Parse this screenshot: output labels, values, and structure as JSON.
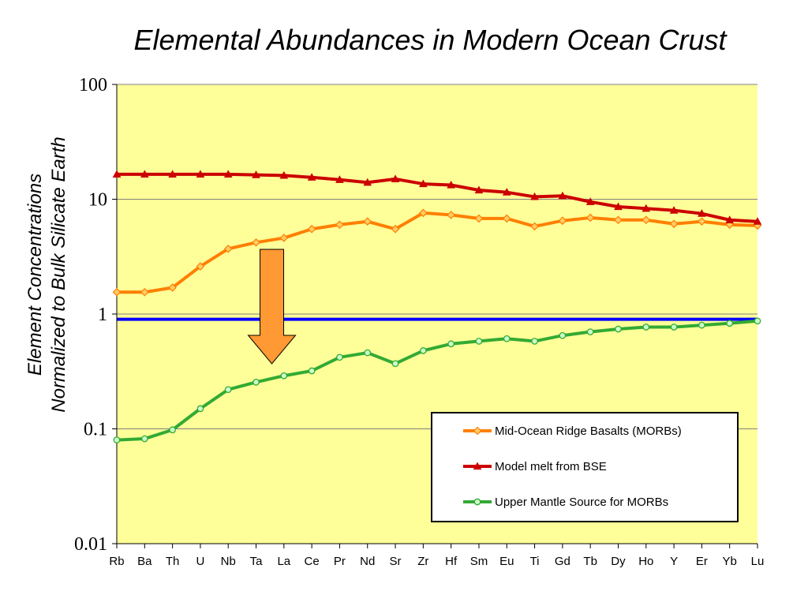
{
  "chart_data": {
    "type": "line",
    "title": "Elemental Abundances in Modern Ocean Crust",
    "ylabel": [
      "Element Concentrations",
      "Normalized to Bulk Silicate Earth"
    ],
    "yscale": "log",
    "ylim": [
      0.01,
      100
    ],
    "yticks": [
      "100",
      "10",
      "1",
      "0.1",
      "0.01"
    ],
    "categories": [
      "Rb",
      "Ba",
      "Th",
      "U",
      "Nb",
      "Ta",
      "La",
      "Ce",
      "Pr",
      "Nd",
      "Sr",
      "Zr",
      "Hf",
      "Sm",
      "Eu",
      "Ti",
      "Gd",
      "Tb",
      "Dy",
      "Ho",
      "Y",
      "Er",
      "Yb",
      "Lu"
    ],
    "grid": "horizontal",
    "legend_position": "bottom-right",
    "background": "#ffff99",
    "reference_line": {
      "value": 0.9,
      "color": "#0000ff"
    },
    "annotation": {
      "type": "down-arrow",
      "from_category": "Ta",
      "color": "#ff9933"
    },
    "series": [
      {
        "name": "Mid-Ocean Ridge Basalts (MORBs)",
        "color": "#ff7f00",
        "marker": "diamond",
        "values": [
          1.55,
          1.55,
          1.7,
          2.6,
          3.7,
          4.2,
          4.6,
          5.5,
          6.0,
          6.4,
          5.5,
          7.6,
          7.3,
          6.8,
          6.8,
          5.8,
          6.5,
          6.9,
          6.6,
          6.6,
          6.1,
          6.4,
          6.0,
          5.9
        ]
      },
      {
        "name": "Model melt from BSE",
        "color": "#cc0000",
        "marker": "triangle",
        "values": [
          16.5,
          16.5,
          16.5,
          16.5,
          16.5,
          16.3,
          16.1,
          15.5,
          14.8,
          14.0,
          15.0,
          13.6,
          13.3,
          12.0,
          11.5,
          10.5,
          10.7,
          9.5,
          8.6,
          8.3,
          8.0,
          7.5,
          6.6,
          6.4
        ]
      },
      {
        "name": "Upper Mantle Source for MORBs",
        "color": "#33aa33",
        "marker": "circle",
        "values": [
          0.08,
          0.082,
          0.098,
          0.15,
          0.22,
          0.255,
          0.29,
          0.32,
          0.42,
          0.46,
          0.37,
          0.48,
          0.55,
          0.58,
          0.61,
          0.58,
          0.65,
          0.7,
          0.74,
          0.77,
          0.77,
          0.8,
          0.83,
          0.87
        ]
      }
    ]
  }
}
